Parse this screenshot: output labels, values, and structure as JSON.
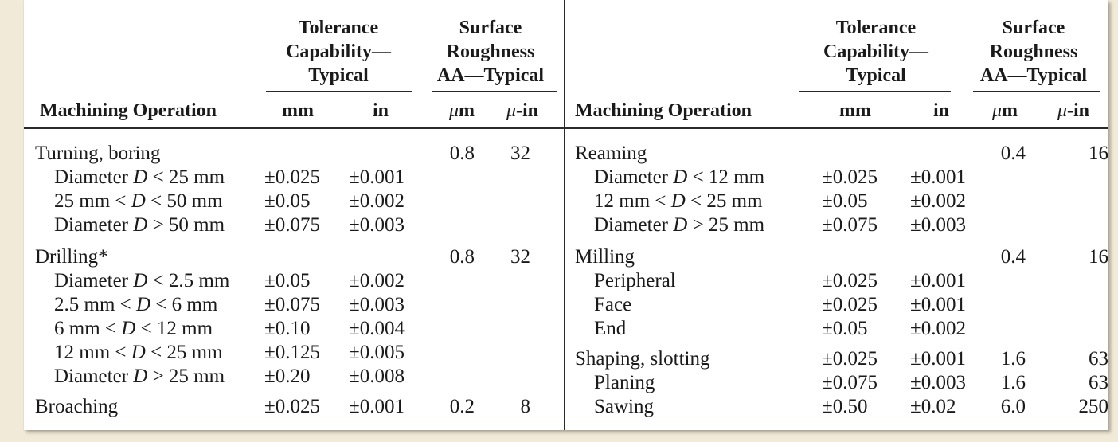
{
  "header": {
    "tolerance_group": [
      "Tolerance",
      "Capability—",
      "Typical"
    ],
    "roughness_group": [
      "Surface",
      "Roughness",
      "AA—Typical"
    ],
    "col_operation": "Machining Operation",
    "col_mm": "mm",
    "col_in": "in",
    "col_um_symbol": "μ",
    "col_um_unit": "m",
    "col_uin_symbol": "μ",
    "col_uin_unit": "-in"
  },
  "left_rows": [
    {
      "name": "Turning, boring",
      "sub": false,
      "mm": "",
      "in": "",
      "um": "0.8",
      "uin": "32"
    },
    {
      "name": "Diameter D < 25 mm",
      "sub": true,
      "mm": "±0.025",
      "in": "±0.001",
      "um": "",
      "uin": ""
    },
    {
      "name": "25 mm < D < 50 mm",
      "sub": true,
      "mm": "±0.05",
      "in": "±0.002",
      "um": "",
      "uin": ""
    },
    {
      "name": "Diameter D > 50 mm",
      "sub": true,
      "mm": "±0.075",
      "in": "±0.003",
      "um": "",
      "uin": ""
    },
    {
      "name": "Drilling*",
      "sub": false,
      "mm": "",
      "in": "",
      "um": "0.8",
      "uin": "32"
    },
    {
      "name": "Diameter D < 2.5 mm",
      "sub": true,
      "mm": "±0.05",
      "in": "±0.002",
      "um": "",
      "uin": ""
    },
    {
      "name": "2.5 mm < D < 6 mm",
      "sub": true,
      "mm": "±0.075",
      "in": "±0.003",
      "um": "",
      "uin": ""
    },
    {
      "name": "6 mm < D < 12 mm",
      "sub": true,
      "mm": "±0.10",
      "in": "±0.004",
      "um": "",
      "uin": ""
    },
    {
      "name": "12 mm < D < 25 mm",
      "sub": true,
      "mm": "±0.125",
      "in": "±0.005",
      "um": "",
      "uin": ""
    },
    {
      "name": "Diameter D > 25 mm",
      "sub": true,
      "mm": "±0.20",
      "in": "±0.008",
      "um": "",
      "uin": ""
    },
    {
      "name": "Broaching",
      "sub": false,
      "mm": "±0.025",
      "in": "±0.001",
      "um": "0.2",
      "uin": "8"
    }
  ],
  "right_rows": [
    {
      "name": "Reaming",
      "sub": false,
      "mm": "",
      "in": "",
      "um": "0.4",
      "uin": "16"
    },
    {
      "name": "Diameter D < 12 mm",
      "sub": true,
      "mm": "±0.025",
      "in": "±0.001",
      "um": "",
      "uin": ""
    },
    {
      "name": "12 mm < D < 25 mm",
      "sub": true,
      "mm": "±0.05",
      "in": "±0.002",
      "um": "",
      "uin": ""
    },
    {
      "name": "Diameter D > 25 mm",
      "sub": true,
      "mm": "±0.075",
      "in": "±0.003",
      "um": "",
      "uin": ""
    },
    {
      "name": "Milling",
      "sub": false,
      "mm": "",
      "in": "",
      "um": "0.4",
      "uin": "16"
    },
    {
      "name": "Peripheral",
      "sub": true,
      "mm": "±0.025",
      "in": "±0.001",
      "um": "",
      "uin": ""
    },
    {
      "name": "Face",
      "sub": true,
      "mm": "±0.025",
      "in": "±0.001",
      "um": "",
      "uin": ""
    },
    {
      "name": "End",
      "sub": true,
      "mm": "±0.05",
      "in": "±0.002",
      "um": "",
      "uin": ""
    },
    {
      "name": "Shaping, slotting",
      "sub": false,
      "mm": "±0.025",
      "in": "±0.001",
      "um": "1.6",
      "uin": "63"
    },
    {
      "name": "Planing",
      "sub": true,
      "mm": "±0.075",
      "in": "±0.003",
      "um": "1.6",
      "uin": "63"
    },
    {
      "name": "Sawing",
      "sub": true,
      "mm": "±0.50",
      "in": "±0.02",
      "um": "6.0",
      "uin": "250"
    }
  ]
}
